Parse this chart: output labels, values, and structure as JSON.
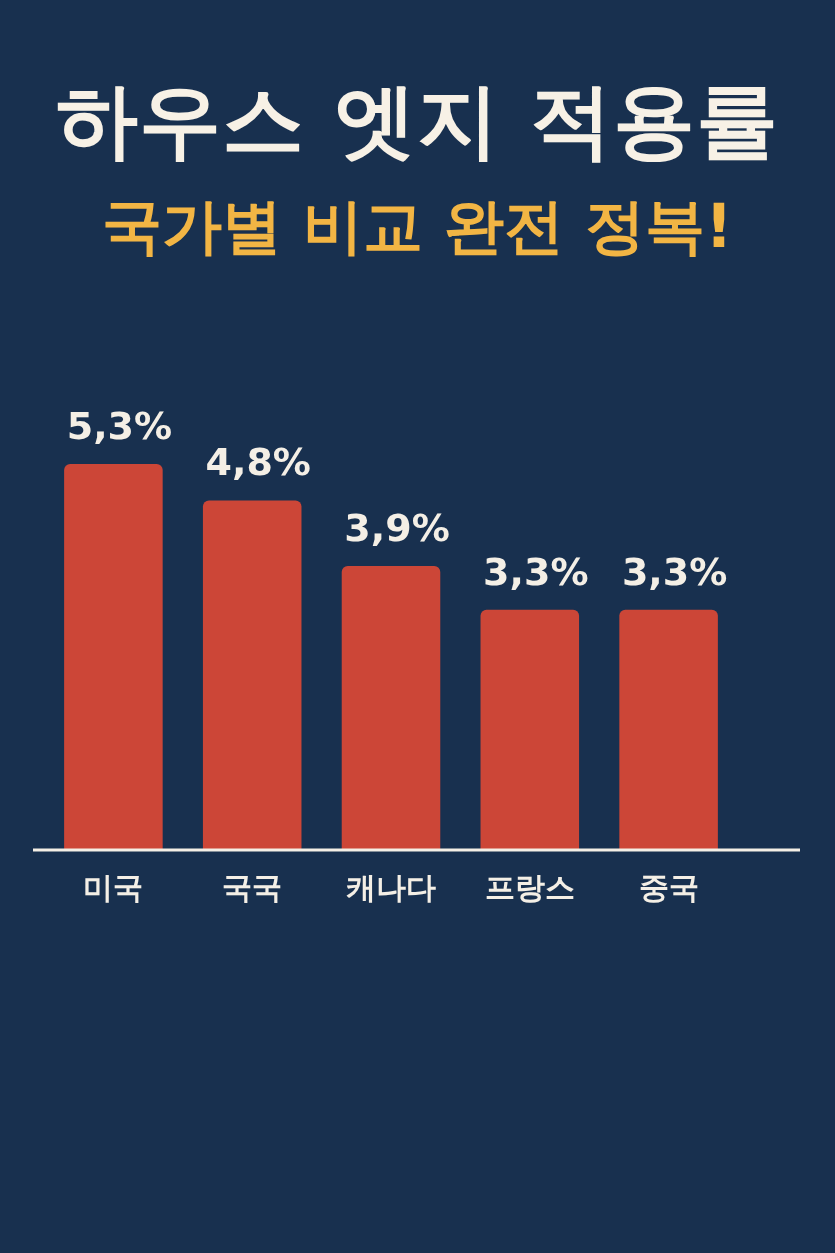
{
  "chart_data": {
    "type": "bar",
    "title": "하우스 엣지 적용률",
    "subtitle": "국가별 비교 완전 정복!",
    "categories": [
      "미국",
      "국국",
      "캐나다",
      "프랑스",
      "중국"
    ],
    "values": [
      5.3,
      4.8,
      3.9,
      3.3,
      3.3
    ],
    "value_labels": [
      "5,3%",
      "4,8%",
      "3,9%",
      "3,3%",
      "3,3%"
    ],
    "color": "#cc4637",
    "tick_labels": "x"
  }
}
